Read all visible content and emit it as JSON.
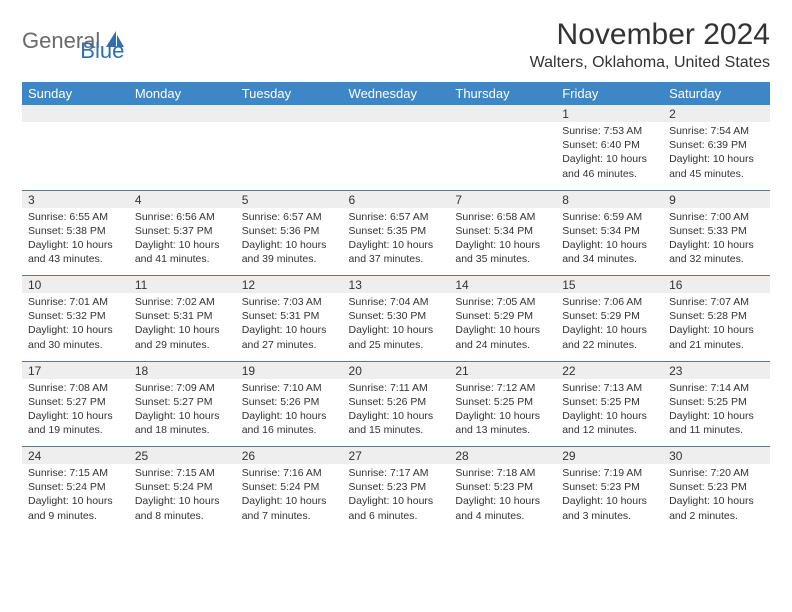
{
  "logo": {
    "text1": "General",
    "text2": "Blue",
    "color_general": "#6a6a6a",
    "color_blue": "#2f6fb0",
    "icon_color": "#2f6fb0"
  },
  "title": "November 2024",
  "location": "Walters, Oklahoma, United States",
  "colors": {
    "header_bg": "#3d87c9",
    "header_text": "#ffffff",
    "daynum_bg": "#eeeeee",
    "grid_line": "#5a7a94",
    "body_text": "#333333",
    "page_bg": "#ffffff"
  },
  "font": {
    "title_size": 30,
    "location_size": 16,
    "dow_size": 13,
    "daynum_size": 12,
    "cell_size": 10.5
  },
  "days_of_week": [
    "Sunday",
    "Monday",
    "Tuesday",
    "Wednesday",
    "Thursday",
    "Friday",
    "Saturday"
  ],
  "weeks": [
    [
      {
        "n": "",
        "sunrise": "",
        "sunset": "",
        "daylight": ""
      },
      {
        "n": "",
        "sunrise": "",
        "sunset": "",
        "daylight": ""
      },
      {
        "n": "",
        "sunrise": "",
        "sunset": "",
        "daylight": ""
      },
      {
        "n": "",
        "sunrise": "",
        "sunset": "",
        "daylight": ""
      },
      {
        "n": "",
        "sunrise": "",
        "sunset": "",
        "daylight": ""
      },
      {
        "n": "1",
        "sunrise": "Sunrise: 7:53 AM",
        "sunset": "Sunset: 6:40 PM",
        "daylight": "Daylight: 10 hours and 46 minutes."
      },
      {
        "n": "2",
        "sunrise": "Sunrise: 7:54 AM",
        "sunset": "Sunset: 6:39 PM",
        "daylight": "Daylight: 10 hours and 45 minutes."
      }
    ],
    [
      {
        "n": "3",
        "sunrise": "Sunrise: 6:55 AM",
        "sunset": "Sunset: 5:38 PM",
        "daylight": "Daylight: 10 hours and 43 minutes."
      },
      {
        "n": "4",
        "sunrise": "Sunrise: 6:56 AM",
        "sunset": "Sunset: 5:37 PM",
        "daylight": "Daylight: 10 hours and 41 minutes."
      },
      {
        "n": "5",
        "sunrise": "Sunrise: 6:57 AM",
        "sunset": "Sunset: 5:36 PM",
        "daylight": "Daylight: 10 hours and 39 minutes."
      },
      {
        "n": "6",
        "sunrise": "Sunrise: 6:57 AM",
        "sunset": "Sunset: 5:35 PM",
        "daylight": "Daylight: 10 hours and 37 minutes."
      },
      {
        "n": "7",
        "sunrise": "Sunrise: 6:58 AM",
        "sunset": "Sunset: 5:34 PM",
        "daylight": "Daylight: 10 hours and 35 minutes."
      },
      {
        "n": "8",
        "sunrise": "Sunrise: 6:59 AM",
        "sunset": "Sunset: 5:34 PM",
        "daylight": "Daylight: 10 hours and 34 minutes."
      },
      {
        "n": "9",
        "sunrise": "Sunrise: 7:00 AM",
        "sunset": "Sunset: 5:33 PM",
        "daylight": "Daylight: 10 hours and 32 minutes."
      }
    ],
    [
      {
        "n": "10",
        "sunrise": "Sunrise: 7:01 AM",
        "sunset": "Sunset: 5:32 PM",
        "daylight": "Daylight: 10 hours and 30 minutes."
      },
      {
        "n": "11",
        "sunrise": "Sunrise: 7:02 AM",
        "sunset": "Sunset: 5:31 PM",
        "daylight": "Daylight: 10 hours and 29 minutes."
      },
      {
        "n": "12",
        "sunrise": "Sunrise: 7:03 AM",
        "sunset": "Sunset: 5:31 PM",
        "daylight": "Daylight: 10 hours and 27 minutes."
      },
      {
        "n": "13",
        "sunrise": "Sunrise: 7:04 AM",
        "sunset": "Sunset: 5:30 PM",
        "daylight": "Daylight: 10 hours and 25 minutes."
      },
      {
        "n": "14",
        "sunrise": "Sunrise: 7:05 AM",
        "sunset": "Sunset: 5:29 PM",
        "daylight": "Daylight: 10 hours and 24 minutes."
      },
      {
        "n": "15",
        "sunrise": "Sunrise: 7:06 AM",
        "sunset": "Sunset: 5:29 PM",
        "daylight": "Daylight: 10 hours and 22 minutes."
      },
      {
        "n": "16",
        "sunrise": "Sunrise: 7:07 AM",
        "sunset": "Sunset: 5:28 PM",
        "daylight": "Daylight: 10 hours and 21 minutes."
      }
    ],
    [
      {
        "n": "17",
        "sunrise": "Sunrise: 7:08 AM",
        "sunset": "Sunset: 5:27 PM",
        "daylight": "Daylight: 10 hours and 19 minutes."
      },
      {
        "n": "18",
        "sunrise": "Sunrise: 7:09 AM",
        "sunset": "Sunset: 5:27 PM",
        "daylight": "Daylight: 10 hours and 18 minutes."
      },
      {
        "n": "19",
        "sunrise": "Sunrise: 7:10 AM",
        "sunset": "Sunset: 5:26 PM",
        "daylight": "Daylight: 10 hours and 16 minutes."
      },
      {
        "n": "20",
        "sunrise": "Sunrise: 7:11 AM",
        "sunset": "Sunset: 5:26 PM",
        "daylight": "Daylight: 10 hours and 15 minutes."
      },
      {
        "n": "21",
        "sunrise": "Sunrise: 7:12 AM",
        "sunset": "Sunset: 5:25 PM",
        "daylight": "Daylight: 10 hours and 13 minutes."
      },
      {
        "n": "22",
        "sunrise": "Sunrise: 7:13 AM",
        "sunset": "Sunset: 5:25 PM",
        "daylight": "Daylight: 10 hours and 12 minutes."
      },
      {
        "n": "23",
        "sunrise": "Sunrise: 7:14 AM",
        "sunset": "Sunset: 5:25 PM",
        "daylight": "Daylight: 10 hours and 11 minutes."
      }
    ],
    [
      {
        "n": "24",
        "sunrise": "Sunrise: 7:15 AM",
        "sunset": "Sunset: 5:24 PM",
        "daylight": "Daylight: 10 hours and 9 minutes."
      },
      {
        "n": "25",
        "sunrise": "Sunrise: 7:15 AM",
        "sunset": "Sunset: 5:24 PM",
        "daylight": "Daylight: 10 hours and 8 minutes."
      },
      {
        "n": "26",
        "sunrise": "Sunrise: 7:16 AM",
        "sunset": "Sunset: 5:24 PM",
        "daylight": "Daylight: 10 hours and 7 minutes."
      },
      {
        "n": "27",
        "sunrise": "Sunrise: 7:17 AM",
        "sunset": "Sunset: 5:23 PM",
        "daylight": "Daylight: 10 hours and 6 minutes."
      },
      {
        "n": "28",
        "sunrise": "Sunrise: 7:18 AM",
        "sunset": "Sunset: 5:23 PM",
        "daylight": "Daylight: 10 hours and 4 minutes."
      },
      {
        "n": "29",
        "sunrise": "Sunrise: 7:19 AM",
        "sunset": "Sunset: 5:23 PM",
        "daylight": "Daylight: 10 hours and 3 minutes."
      },
      {
        "n": "30",
        "sunrise": "Sunrise: 7:20 AM",
        "sunset": "Sunset: 5:23 PM",
        "daylight": "Daylight: 10 hours and 2 minutes."
      }
    ]
  ]
}
